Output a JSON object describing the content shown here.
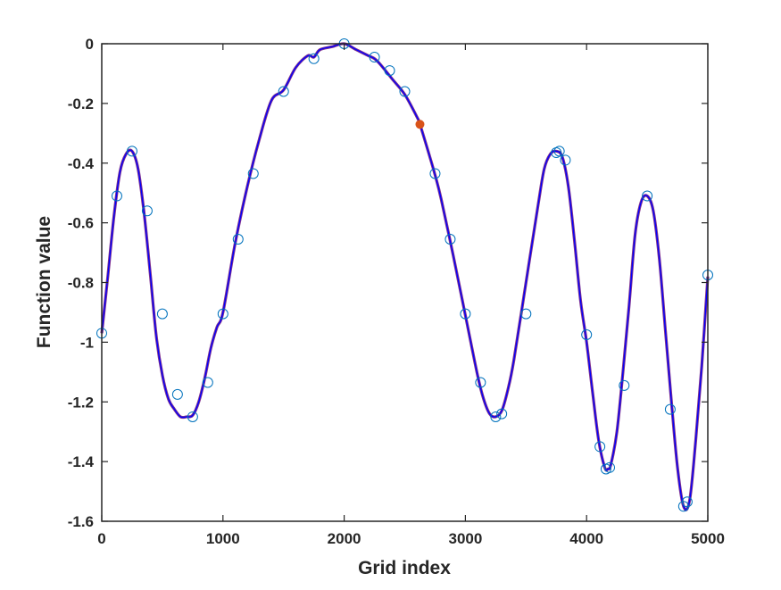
{
  "chart_data": {
    "type": "line",
    "title": "",
    "xlabel": "Grid index",
    "ylabel": "Function value",
    "xlim": [
      0,
      5000
    ],
    "ylim": [
      -1.6,
      0
    ],
    "xticks": [
      0,
      1000,
      2000,
      3000,
      4000,
      5000
    ],
    "yticks": [
      0,
      -0.2,
      -0.4,
      -0.6,
      -0.8,
      -1,
      -1.2,
      -1.4,
      -1.6
    ],
    "xtick_labels": [
      "0",
      "1000",
      "2000",
      "3000",
      "4000",
      "5000"
    ],
    "ytick_labels": [
      "0",
      "-0.2",
      "-0.4",
      "-0.6",
      "-0.8",
      "-1",
      "-1.2",
      "-1.4",
      "-1.6"
    ],
    "grid": false,
    "box": true,
    "series": [
      {
        "kind": "line",
        "color": "#7E2F8E",
        "overlay_color": "#0000FF",
        "x": [
          0,
          50,
          100,
          150,
          200,
          250,
          300,
          350,
          400,
          450,
          500,
          550,
          600,
          650,
          700,
          750,
          800,
          850,
          900,
          950,
          1000,
          1100,
          1200,
          1300,
          1400,
          1500,
          1600,
          1700,
          1750,
          1800,
          1900,
          2000,
          2100,
          2200,
          2250,
          2300,
          2400,
          2500,
          2600,
          2625,
          2700,
          2750,
          2800,
          2900,
          3000,
          3100,
          3150,
          3200,
          3250,
          3300,
          3350,
          3400,
          3500,
          3600,
          3650,
          3700,
          3750,
          3800,
          3850,
          3900,
          3950,
          4000,
          4050,
          4100,
          4150,
          4175,
          4200,
          4250,
          4300,
          4350,
          4400,
          4450,
          4500,
          4550,
          4600,
          4650,
          4700,
          4750,
          4800,
          4850,
          4900,
          4950,
          5000
        ],
        "y": [
          -0.97,
          -0.78,
          -0.58,
          -0.43,
          -0.37,
          -0.36,
          -0.42,
          -0.57,
          -0.77,
          -0.98,
          -1.11,
          -1.19,
          -1.225,
          -1.25,
          -1.25,
          -1.245,
          -1.2,
          -1.12,
          -1.02,
          -0.95,
          -0.9,
          -0.67,
          -0.48,
          -0.32,
          -0.19,
          -0.155,
          -0.08,
          -0.04,
          -0.045,
          -0.02,
          -0.01,
          0.0,
          -0.02,
          -0.04,
          -0.05,
          -0.07,
          -0.12,
          -0.17,
          -0.245,
          -0.27,
          -0.37,
          -0.44,
          -0.52,
          -0.71,
          -0.91,
          -1.11,
          -1.19,
          -1.24,
          -1.25,
          -1.23,
          -1.16,
          -1.06,
          -0.8,
          -0.54,
          -0.42,
          -0.37,
          -0.36,
          -0.38,
          -0.48,
          -0.66,
          -0.86,
          -1.0,
          -1.17,
          -1.33,
          -1.42,
          -1.425,
          -1.41,
          -1.3,
          -1.1,
          -0.88,
          -0.64,
          -0.53,
          -0.51,
          -0.56,
          -0.72,
          -0.96,
          -1.2,
          -1.42,
          -1.55,
          -1.53,
          -1.33,
          -1.08,
          -0.78
        ]
      },
      {
        "kind": "markers",
        "marker": "circle",
        "color": "#0072BD",
        "x": [
          0,
          125,
          250,
          375,
          500,
          625,
          750,
          875,
          1000,
          1125,
          1250,
          1500,
          1750,
          2000,
          2250,
          2375,
          2500,
          2750,
          2875,
          3000,
          3125,
          3250,
          3300,
          3500,
          3750,
          3775,
          3825,
          4000,
          4110,
          4160,
          4190,
          4310,
          4500,
          4690,
          4800,
          4830
        ],
        "y": [
          -0.97,
          -0.51,
          -0.36,
          -0.56,
          -0.905,
          -1.175,
          -1.25,
          -1.135,
          -0.905,
          -0.655,
          -0.435,
          -0.16,
          -0.05,
          0.0,
          -0.045,
          -0.09,
          -0.16,
          -0.435,
          -0.655,
          -0.905,
          -1.135,
          -1.25,
          -1.24,
          -0.905,
          -0.365,
          -0.36,
          -0.39,
          -0.975,
          -1.35,
          -1.425,
          -1.42,
          -1.145,
          -0.51,
          -1.225,
          -1.55,
          -1.535
        ]
      },
      {
        "kind": "markers",
        "marker": "circle",
        "color": "#0072BD",
        "x": [
          5000
        ],
        "y": [
          -0.775
        ]
      },
      {
        "kind": "point",
        "marker": "filled-circle",
        "color": "#D95319",
        "x": [
          2625
        ],
        "y": [
          -0.27
        ]
      }
    ]
  }
}
